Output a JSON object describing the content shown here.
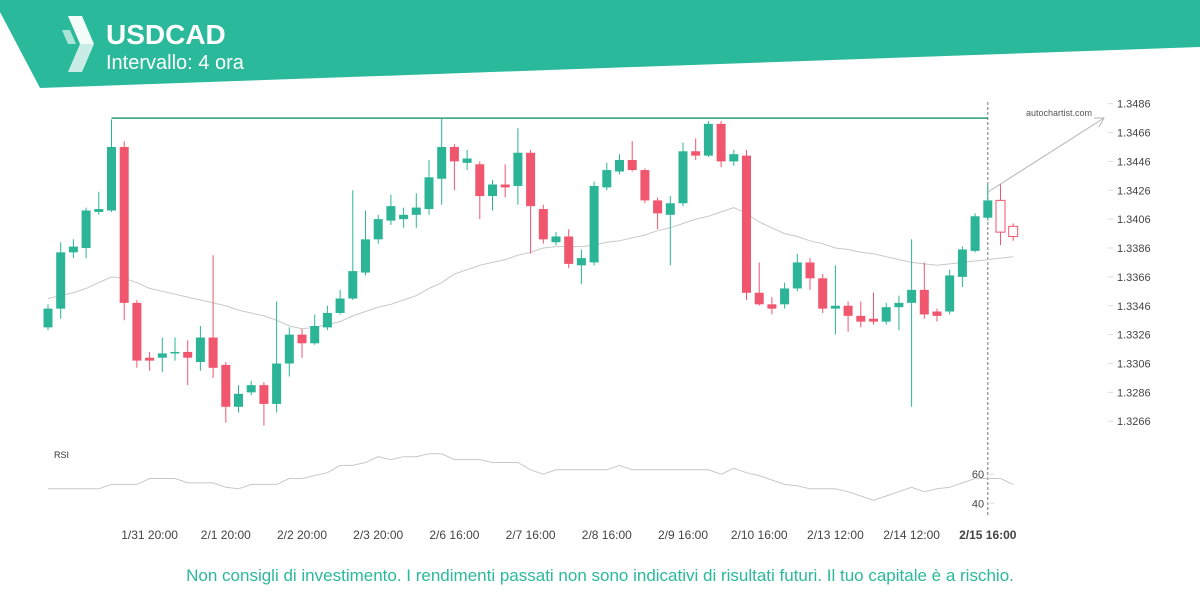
{
  "header": {
    "title": "USDCAD",
    "subtitle": "Intervallo: 4 ora"
  },
  "footer": "Non consigli di investimento. I rendimenti passati non sono indicativi di risultati futuri. Il tuo capitale è a rischio.",
  "watermark": "autochartist.com",
  "chart_data": {
    "type": "candlestick",
    "categories": [
      null,
      null,
      null,
      null,
      null,
      null,
      null,
      null,
      "1/31 20:00",
      null,
      null,
      null,
      null,
      null,
      "2/1 20:00",
      null,
      null,
      null,
      null,
      null,
      "2/2 20:00",
      null,
      null,
      null,
      null,
      null,
      "2/3 20:00",
      null,
      null,
      null,
      null,
      null,
      "2/6 16:00",
      null,
      null,
      null,
      null,
      null,
      "2/7 16:00",
      null,
      null,
      null,
      null,
      null,
      "2/8 16:00",
      null,
      null,
      null,
      null,
      null,
      "2/9 16:00",
      null,
      null,
      null,
      null,
      null,
      "2/10 16:00",
      null,
      null,
      null,
      null,
      null,
      "2/13 12:00",
      null,
      null,
      null,
      null,
      null,
      "2/14 12:00",
      null,
      null,
      null,
      null,
      null,
      "2/15 16:00",
      null,
      null
    ],
    "open": [
      1.3331,
      1.3344,
      1.3383,
      1.3386,
      1.3411,
      1.3412,
      1.3456,
      1.3348,
      1.331,
      1.331,
      1.3313,
      1.3314,
      1.3307,
      1.3324,
      1.3305,
      1.3276,
      1.3286,
      1.3291,
      1.3278,
      1.3306,
      1.3326,
      1.332,
      1.3331,
      1.3341,
      1.3351,
      1.3369,
      1.3392,
      1.3405,
      1.3406,
      1.3409,
      1.3413,
      1.3434,
      1.3456,
      1.3445,
      1.3444,
      1.3422,
      1.343,
      1.3429,
      1.3452,
      1.3413,
      1.339,
      1.3394,
      1.3374,
      1.3376,
      1.3428,
      1.3439,
      1.3447,
      1.344,
      1.3419,
      1.3409,
      1.3417,
      1.3453,
      1.345,
      1.3472,
      1.3446,
      1.345,
      1.3355,
      1.3347,
      1.3347,
      1.3358,
      1.3376,
      1.3365,
      1.3344,
      1.3346,
      1.3339,
      1.3337,
      1.3335,
      1.3345,
      1.3348,
      1.3357,
      1.3342,
      1.3342,
      1.3366,
      1.3384,
      1.3407,
      1.3419,
      1.3401
    ],
    "high": [
      1.3347,
      1.339,
      1.3392,
      1.3414,
      1.3425,
      1.3475,
      1.346,
      1.335,
      1.3314,
      1.3324,
      1.3324,
      1.3322,
      1.3332,
      1.3381,
      1.3307,
      1.3291,
      1.3294,
      1.3293,
      1.3349,
      1.3331,
      1.333,
      1.334,
      1.3346,
      1.3357,
      1.3426,
      1.3412,
      1.3409,
      1.3423,
      1.3414,
      1.3424,
      1.3447,
      1.3476,
      1.3458,
      1.3454,
      1.3446,
      1.3433,
      1.3444,
      1.3469,
      1.3454,
      1.3416,
      1.3397,
      1.3399,
      1.3385,
      1.3432,
      1.3445,
      1.3451,
      1.346,
      1.3441,
      1.3421,
      1.3422,
      1.3459,
      1.3462,
      1.3474,
      1.3474,
      1.3454,
      1.3454,
      1.3376,
      1.3352,
      1.3362,
      1.3382,
      1.3379,
      1.3368,
      1.3374,
      1.3349,
      1.3349,
      1.3355,
      1.3348,
      1.3353,
      1.3392,
      1.3376,
      1.3344,
      1.3371,
      1.3387,
      1.341,
      1.343,
      1.343,
      1.3403
    ],
    "low": [
      1.3329,
      1.3337,
      1.3379,
      1.3379,
      1.3409,
      1.3411,
      1.3336,
      1.3303,
      1.3301,
      1.33,
      1.3308,
      1.3291,
      1.3301,
      1.3296,
      1.3265,
      1.3272,
      1.3284,
      1.3263,
      1.3272,
      1.3297,
      1.331,
      1.3319,
      1.3329,
      1.334,
      1.335,
      1.3367,
      1.3389,
      1.3402,
      1.34,
      1.34,
      1.3409,
      1.3416,
      1.3426,
      1.344,
      1.3406,
      1.3412,
      1.3421,
      1.3416,
      1.3382,
      1.3389,
      1.3388,
      1.3372,
      1.3361,
      1.3374,
      1.3426,
      1.3437,
      1.3439,
      1.3417,
      1.3399,
      1.3374,
      1.3415,
      1.3447,
      1.3449,
      1.3442,
      1.3443,
      1.335,
      1.3346,
      1.334,
      1.3344,
      1.3356,
      1.3357,
      1.3341,
      1.3326,
      1.3328,
      1.3331,
      1.3333,
      1.3333,
      1.3329,
      1.3276,
      1.3337,
      1.3335,
      1.334,
      1.3359,
      1.3383,
      1.3405,
      1.3388,
      1.3391
    ],
    "close": [
      1.3344,
      1.3383,
      1.3387,
      1.3412,
      1.3413,
      1.3456,
      1.3348,
      1.3308,
      1.3308,
      1.3313,
      1.3314,
      1.331,
      1.3324,
      1.3303,
      1.3276,
      1.3285,
      1.3291,
      1.3278,
      1.3306,
      1.3326,
      1.332,
      1.3332,
      1.3341,
      1.3351,
      1.337,
      1.3392,
      1.3406,
      1.3415,
      1.3409,
      1.3414,
      1.3435,
      1.3456,
      1.3446,
      1.3448,
      1.3422,
      1.343,
      1.3428,
      1.3452,
      1.3415,
      1.3392,
      1.3394,
      1.3375,
      1.3379,
      1.3429,
      1.344,
      1.3447,
      1.344,
      1.3419,
      1.341,
      1.3417,
      1.3453,
      1.345,
      1.3472,
      1.3446,
      1.3451,
      1.3355,
      1.3347,
      1.3344,
      1.3358,
      1.3376,
      1.3365,
      1.3344,
      1.3346,
      1.3339,
      1.3335,
      1.3335,
      1.3345,
      1.3348,
      1.3357,
      1.334,
      1.3339,
      1.3367,
      1.3385,
      1.3408,
      1.3419,
      1.3397,
      1.3394
    ],
    "ma": [
      1.3351,
      1.3353,
      1.3355,
      1.3358,
      1.3362,
      1.3366,
      1.3365,
      1.3362,
      1.3358,
      1.3356,
      1.3354,
      1.3352,
      1.335,
      1.3348,
      1.3346,
      1.3343,
      1.3341,
      1.3339,
      1.3336,
      1.3332,
      1.333,
      1.3331,
      1.3333,
      1.3335,
      1.3339,
      1.3342,
      1.3345,
      1.3347,
      1.335,
      1.3353,
      1.3358,
      1.3362,
      1.3368,
      1.3371,
      1.3374,
      1.3376,
      1.3378,
      1.3381,
      1.3383,
      1.3386,
      1.3387,
      1.3387,
      1.3387,
      1.3388,
      1.339,
      1.3391,
      1.3393,
      1.3395,
      1.3398,
      1.34,
      1.3403,
      1.3406,
      1.3408,
      1.3411,
      1.3414,
      1.341,
      1.3404,
      1.34,
      1.3396,
      1.3394,
      1.3391,
      1.3389,
      1.3386,
      1.3385,
      1.3383,
      1.3382,
      1.338,
      1.3378,
      1.3376,
      1.3375,
      1.3374,
      1.3375,
      1.3376,
      1.3377,
      1.3378,
      1.3379,
      1.338
    ],
    "resistance": 1.3476,
    "up_color": "#2bb596",
    "down_color": "#f0566e",
    "ma_color": "#c8c8c8",
    "hollow_last": 2,
    "ylim": [
      1.3253,
      1.3492
    ],
    "yticks": [
      1.3266,
      1.3286,
      1.3306,
      1.3326,
      1.3346,
      1.3366,
      1.3386,
      1.3406,
      1.3426,
      1.3446,
      1.3466,
      1.3486
    ],
    "rsi": {
      "label": "RSI",
      "color": "#c8c8c8",
      "values": [
        50,
        50,
        50,
        50,
        50,
        53,
        53,
        53,
        57,
        57,
        57,
        54,
        54,
        54,
        51,
        50,
        53,
        53,
        53,
        57,
        57,
        59,
        61,
        66,
        66,
        68,
        72,
        70,
        72,
        72,
        74,
        74,
        70,
        70,
        70,
        68,
        68,
        68,
        63,
        60,
        63,
        63,
        63,
        63,
        63,
        66,
        63,
        63,
        63,
        63,
        63,
        63,
        63,
        60,
        64,
        61,
        59,
        56,
        53,
        52,
        50,
        50,
        50,
        48,
        45,
        42,
        45,
        48,
        51,
        48,
        50,
        51,
        54,
        57,
        57,
        57,
        53
      ],
      "ylim": [
        32,
        80
      ],
      "yticks": [
        60,
        40
      ]
    }
  }
}
